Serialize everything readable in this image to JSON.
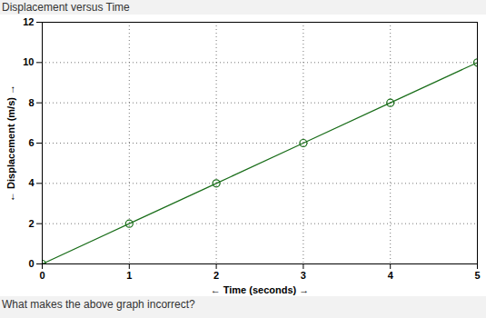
{
  "chart_data": {
    "type": "line",
    "title": "Displacement versus Time",
    "x_label": "← Time (seconds) →",
    "y_label": "← Displacement (m/s) →",
    "caption": "What makes the above graph incorrect?",
    "x": [
      0,
      1,
      2,
      3,
      4,
      5
    ],
    "values": [
      0,
      2,
      4,
      6,
      8,
      10
    ],
    "color": "#1a6e1a",
    "marker": "circle",
    "xlim": [
      0,
      5
    ],
    "xticks": [
      0,
      1,
      2,
      3,
      4,
      5
    ],
    "ylim": [
      0,
      12
    ],
    "yticks": [
      0,
      2,
      4,
      6,
      8,
      10,
      12
    ],
    "grid": true
  }
}
